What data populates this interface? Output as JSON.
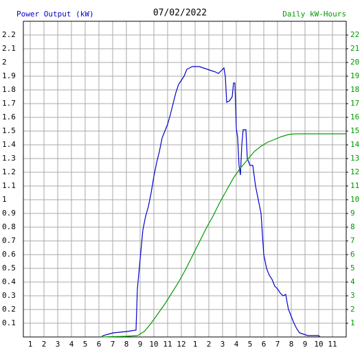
{
  "chart_data": {
    "type": "line",
    "title": "07/02/2022",
    "ylabel": "Power Output (kW)",
    "y2label": "Daily kW-Hours",
    "grid": true,
    "xlim": [
      0.5,
      24
    ],
    "xticks": [
      1,
      2,
      3,
      4,
      5,
      6,
      7,
      8,
      9,
      10,
      11,
      12,
      {
        "value": 13,
        "label": "1"
      },
      {
        "value": 14,
        "label": "2"
      },
      {
        "value": 15,
        "label": "3"
      },
      {
        "value": 16,
        "label": "4"
      },
      {
        "value": 17,
        "label": "5"
      },
      {
        "value": 18,
        "label": "6"
      },
      {
        "value": 19,
        "label": "7"
      },
      {
        "value": 20,
        "label": "8"
      },
      {
        "value": 21,
        "label": "9"
      },
      {
        "value": 22,
        "label": "10"
      },
      {
        "value": 23,
        "label": "11"
      }
    ],
    "ylim": [
      0,
      2.3
    ],
    "yticks": [
      0.1,
      0.2,
      0.3,
      0.4,
      0.5,
      0.6,
      0.7,
      0.8,
      0.9,
      1.0,
      1.1,
      1.2,
      1.3,
      1.4,
      1.5,
      1.6,
      1.7,
      1.8,
      1.9,
      2.0,
      2.1,
      2.2
    ],
    "y2lim": [
      0,
      23
    ],
    "y2ticks": [
      1,
      2,
      3,
      4,
      5,
      6,
      7,
      8,
      9,
      10,
      11,
      12,
      13,
      14,
      15,
      16,
      17,
      18,
      19,
      20,
      21,
      22
    ],
    "series": [
      {
        "color": "#0000cc",
        "axis": "y",
        "x": [
          6.2,
          6.3,
          7.05,
          8.05,
          8.7,
          8.8,
          9.05,
          9.2,
          9.4,
          9.6,
          9.8,
          10.0,
          10.2,
          10.4,
          10.6,
          10.8,
          11.0,
          11.2,
          11.4,
          11.6,
          11.8,
          12.0,
          12.2,
          12.4,
          12.6,
          12.8,
          13.0,
          13.3,
          13.6,
          13.9,
          14.2,
          14.5,
          14.7,
          14.9,
          15.1,
          15.2,
          15.3,
          15.5,
          15.7,
          15.8,
          15.9,
          16.0,
          16.1,
          16.2,
          16.3,
          16.4,
          16.5,
          16.7,
          16.8,
          17.0,
          17.2,
          17.4,
          17.6,
          17.8,
          18.0,
          18.2,
          18.4,
          18.6,
          18.8,
          19.0,
          19.2,
          19.4,
          19.6,
          19.7,
          19.8,
          20.0,
          20.2,
          20.4,
          20.6,
          20.9,
          21.2,
          22.0,
          22.1
        ],
        "values": [
          0.0,
          0.01,
          0.03,
          0.04,
          0.05,
          0.35,
          0.62,
          0.78,
          0.88,
          0.95,
          1.05,
          1.17,
          1.27,
          1.35,
          1.45,
          1.5,
          1.55,
          1.62,
          1.7,
          1.78,
          1.84,
          1.87,
          1.9,
          1.95,
          1.96,
          1.97,
          1.97,
          1.97,
          1.96,
          1.95,
          1.94,
          1.93,
          1.92,
          1.94,
          1.96,
          1.9,
          1.71,
          1.72,
          1.75,
          1.85,
          1.85,
          1.52,
          1.45,
          1.25,
          1.18,
          1.4,
          1.51,
          1.51,
          1.3,
          1.25,
          1.25,
          1.1,
          1.0,
          0.9,
          0.6,
          0.5,
          0.45,
          0.42,
          0.37,
          0.35,
          0.32,
          0.3,
          0.31,
          0.25,
          0.2,
          0.15,
          0.1,
          0.06,
          0.03,
          0.02,
          0.01,
          0.01,
          0.0
        ]
      },
      {
        "color": "#009900",
        "axis": "y2",
        "x": [
          6.2,
          8.0,
          8.8,
          9.05,
          9.3,
          9.8,
          10.3,
          10.8,
          11.3,
          11.8,
          12.3,
          12.8,
          13.3,
          13.8,
          14.3,
          14.8,
          15.3,
          15.8,
          16.3,
          16.8,
          17.3,
          17.8,
          18.3,
          18.8,
          19.3,
          19.8,
          20.3,
          20.8,
          24.0
        ],
        "values": [
          0.0,
          0.05,
          0.1,
          0.25,
          0.4,
          1.0,
          1.7,
          2.4,
          3.2,
          4.0,
          4.9,
          5.9,
          6.9,
          7.9,
          8.8,
          9.8,
          10.7,
          11.6,
          12.3,
          12.9,
          13.5,
          13.9,
          14.2,
          14.4,
          14.6,
          14.75,
          14.8,
          14.8,
          14.8
        ]
      }
    ]
  }
}
